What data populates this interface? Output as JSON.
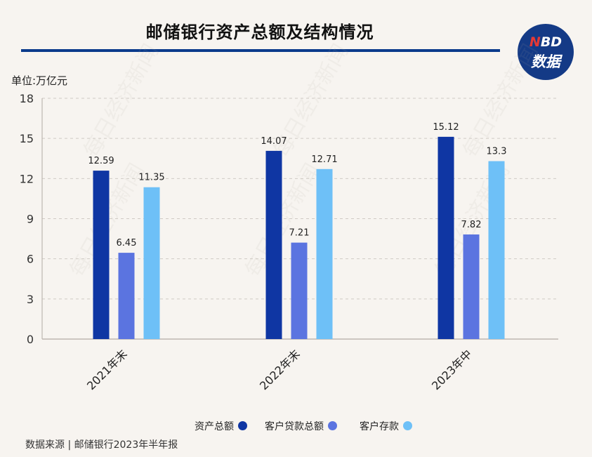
{
  "title": "邮储银行资产总额及结构情况",
  "logo": {
    "top_red": "N",
    "top_rest": "BD",
    "bottom": "数据"
  },
  "watermark": "每日经济新闻",
  "unit_label": "单位:万亿元",
  "source": "数据来源 | 邮储银行2023年半年报",
  "colors": {
    "total_assets": "#0f36a3",
    "loans": "#5b74e0",
    "deposits": "#6ec0f7",
    "brand": "#0b3b8c"
  },
  "chart_data": {
    "type": "bar",
    "categories": [
      "2021年末",
      "2022年末",
      "2023年中"
    ],
    "series": [
      {
        "name": "资产总额",
        "values": [
          12.59,
          14.07,
          15.12
        ]
      },
      {
        "name": "客户贷款总额",
        "values": [
          6.45,
          7.21,
          7.82
        ]
      },
      {
        "name": "客户存款",
        "values": [
          11.35,
          12.71,
          13.3
        ]
      }
    ],
    "value_labels": [
      [
        "12.59",
        "14.07",
        "15.12"
      ],
      [
        "6.45",
        "7.21",
        "7.82"
      ],
      [
        "11.35",
        "12.71",
        "13.3"
      ]
    ],
    "ylim": [
      0,
      18
    ],
    "yticks": [
      0,
      3,
      6,
      9,
      12,
      15,
      18
    ],
    "grid": true,
    "legend": "bottom"
  }
}
